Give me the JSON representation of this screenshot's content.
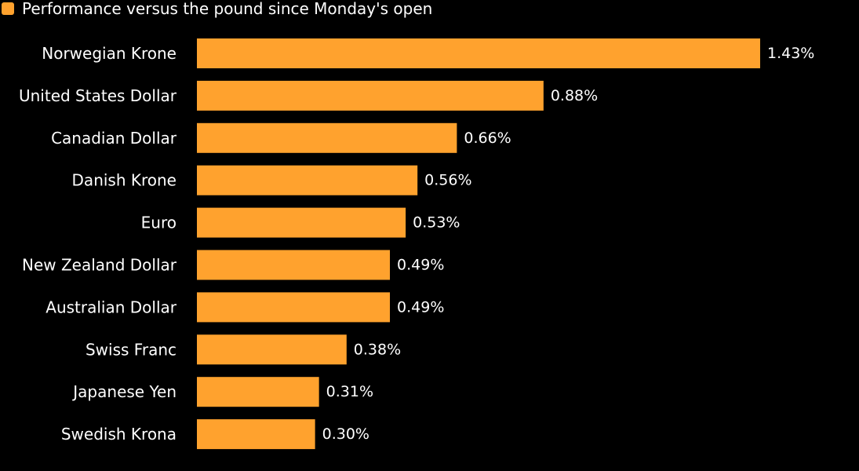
{
  "chart_data": {
    "type": "bar",
    "orientation": "horizontal",
    "title": "",
    "xlabel": "",
    "ylabel": "",
    "legend": {
      "position": "top-left",
      "entries": [
        "Performance versus the pound since Monday's open"
      ]
    },
    "categories": [
      "Norwegian Krone",
      "United States Dollar",
      "Canadian Dollar",
      "Danish Krone",
      "Euro",
      "New Zealand Dollar",
      "Australian Dollar",
      "Swiss Franc",
      "Japanese Yen",
      "Swedish Krona"
    ],
    "series": [
      {
        "name": "Performance versus the pound since Monday's open",
        "values": [
          1.43,
          0.88,
          0.66,
          0.56,
          0.53,
          0.49,
          0.49,
          0.38,
          0.31,
          0.3
        ],
        "value_labels": [
          "1.43%",
          "0.88%",
          "0.66%",
          "0.56%",
          "0.53%",
          "0.49%",
          "0.49%",
          "0.38%",
          "0.31%",
          "0.30%"
        ]
      }
    ],
    "xlim": [
      0,
      1.43
    ],
    "grid": false
  },
  "colors": {
    "background": "#000000",
    "bar": "#FFA22E",
    "text": "#FFFFFF"
  }
}
